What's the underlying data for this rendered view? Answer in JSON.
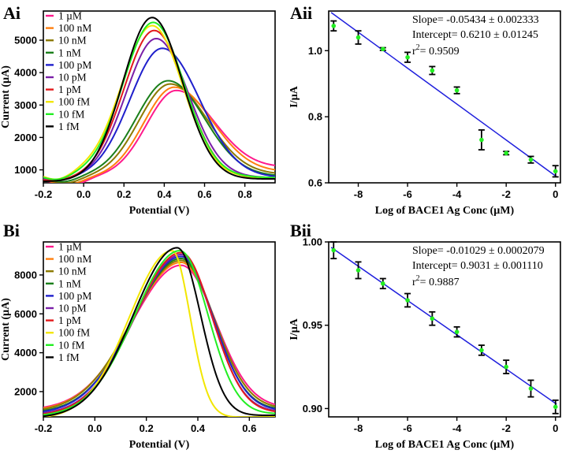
{
  "figure": {
    "panels": [
      {
        "label_main": "A",
        "label_sub": "i"
      },
      {
        "label_main": "A",
        "label_sub": "ii"
      },
      {
        "label_main": "B",
        "label_sub": "i"
      },
      {
        "label_main": "B",
        "label_sub": "ii"
      }
    ]
  },
  "chart_data": [
    {
      "id": "Ai",
      "type": "line",
      "xlabel": "Potential (V)",
      "ylabel": "Current (µA)",
      "xlim": [
        -0.2,
        0.95
      ],
      "ylim": [
        600,
        5900
      ],
      "xticks": [
        -0.2,
        0,
        0.2,
        0.4,
        0.6,
        0.8
      ],
      "yticks": [
        1000,
        2000,
        3000,
        4000,
        5000
      ],
      "series": [
        {
          "name": "1 µM",
          "color": "#ff1a8c",
          "peak_x": 0.46,
          "peak_y": 3450,
          "base_left": 700,
          "base_right": 1050,
          "min_x": -0.07,
          "min_y": 480,
          "sigma_left": 0.145,
          "sigma_right": 0.19
        },
        {
          "name": "100 nM",
          "color": "#ff7f0e",
          "peak_x": 0.45,
          "peak_y": 3550,
          "base_left": 720,
          "base_right": 920,
          "min_x": -0.08,
          "min_y": 520,
          "sigma_left": 0.15,
          "sigma_right": 0.19
        },
        {
          "name": "10 nM",
          "color": "#8c7a00",
          "peak_x": 0.43,
          "peak_y": 3650,
          "base_left": 760,
          "base_right": 850,
          "min_x": -0.09,
          "min_y": 560,
          "sigma_left": 0.155,
          "sigma_right": 0.185
        },
        {
          "name": "1 nM",
          "color": "#1a7f1a",
          "peak_x": 0.42,
          "peak_y": 3750,
          "base_left": 800,
          "base_right": 800,
          "min_x": -0.1,
          "min_y": 600,
          "sigma_left": 0.16,
          "sigma_right": 0.18
        },
        {
          "name": "100 pM",
          "color": "#1f1fcc",
          "peak_x": 0.39,
          "peak_y": 4750,
          "base_left": 760,
          "base_right": 760,
          "min_x": -0.12,
          "min_y": 650,
          "sigma_left": 0.16,
          "sigma_right": 0.185
        },
        {
          "name": "10 pM",
          "color": "#7a1fa8",
          "peak_x": 0.36,
          "peak_y": 5050,
          "base_left": 740,
          "base_right": 760,
          "min_x": -0.13,
          "min_y": 660,
          "sigma_left": 0.15,
          "sigma_right": 0.16
        },
        {
          "name": "1 pM",
          "color": "#e31a1c",
          "peak_x": 0.35,
          "peak_y": 5300,
          "base_left": 720,
          "base_right": 740,
          "min_x": -0.13,
          "min_y": 650,
          "sigma_left": 0.15,
          "sigma_right": 0.155
        },
        {
          "name": "100 fM",
          "color": "#f2e600",
          "peak_x": 0.34,
          "peak_y": 5450,
          "base_left": 950,
          "base_right": 740,
          "min_x": -0.13,
          "min_y": 650,
          "sigma_left": 0.15,
          "sigma_right": 0.15
        },
        {
          "name": "10 fM",
          "color": "#22ee22",
          "peak_x": 0.345,
          "peak_y": 5550,
          "base_left": 880,
          "base_right": 760,
          "min_x": -0.13,
          "min_y": 660,
          "sigma_left": 0.148,
          "sigma_right": 0.152
        },
        {
          "name": "1 fM",
          "color": "#000000",
          "peak_x": 0.34,
          "peak_y": 5700,
          "base_left": 650,
          "base_right": 720,
          "min_x": -0.14,
          "min_y": 640,
          "sigma_left": 0.145,
          "sigma_right": 0.15
        }
      ]
    },
    {
      "id": "Aii",
      "type": "scatter",
      "xlabel": "Log of BACE1 Ag Conc (µM)",
      "ylabel": "I/µA",
      "xlim": [
        -9.2,
        0.2
      ],
      "ylim": [
        0.6,
        1.12
      ],
      "xticks": [
        -8,
        -6,
        -4,
        -2,
        0
      ],
      "yticks": [
        0.6,
        0.8,
        1.0
      ],
      "ytick_labels": [
        "0.6",
        "0.8",
        "1.0"
      ],
      "x": [
        -9,
        -8,
        -7,
        -6,
        -5,
        -4,
        -3,
        -2,
        -1,
        0
      ],
      "y": [
        1.075,
        1.04,
        1.005,
        0.98,
        0.94,
        0.88,
        0.73,
        0.69,
        0.67,
        0.635
      ],
      "err": [
        0.015,
        0.02,
        0.004,
        0.015,
        0.012,
        0.01,
        0.03,
        0.005,
        0.01,
        0.017
      ],
      "fit": {
        "slope": -0.05434,
        "intercept": 0.621,
        "color": "#1f1fdd"
      },
      "point_color": "#22ee22",
      "annotations": {
        "slope": "Slope= -0.05434 ± 0.002333",
        "intercept": "Intercept= 0.6210 ± 0.01245",
        "r2_prefix": "r",
        "r2_sup": "2",
        "r2_value": "= 0.9509"
      }
    },
    {
      "id": "Bi",
      "type": "line",
      "xlabel": "Potential (V)",
      "ylabel": "Current (µA)",
      "xlim": [
        -0.2,
        0.7
      ],
      "ylim": [
        700,
        9700
      ],
      "xticks": [
        -0.2,
        0,
        0.2,
        0.4,
        0.6
      ],
      "yticks": [
        2000,
        4000,
        6000,
        8000
      ],
      "series": [
        {
          "name": "1 µM",
          "color": "#ff1a8c",
          "peak_x": 0.335,
          "peak_y": 8500,
          "base_left": 1050,
          "base_right": 1150,
          "sigma_left": 0.19,
          "sigma_right": 0.135
        },
        {
          "name": "100 nM",
          "color": "#ff7f0e",
          "peak_x": 0.335,
          "peak_y": 8650,
          "base_left": 1000,
          "base_right": 1100,
          "sigma_left": 0.19,
          "sigma_right": 0.13
        },
        {
          "name": "10 nM",
          "color": "#8c7a00",
          "peak_x": 0.335,
          "peak_y": 8750,
          "base_left": 950,
          "base_right": 1100,
          "sigma_left": 0.19,
          "sigma_right": 0.13
        },
        {
          "name": "1 nM",
          "color": "#1a7f1a",
          "peak_x": 0.335,
          "peak_y": 8850,
          "base_left": 900,
          "base_right": 1050,
          "sigma_left": 0.185,
          "sigma_right": 0.125
        },
        {
          "name": "100 pM",
          "color": "#1f1fcc",
          "peak_x": 0.335,
          "peak_y": 8950,
          "base_left": 850,
          "base_right": 1000,
          "sigma_left": 0.185,
          "sigma_right": 0.125
        },
        {
          "name": "10 pM",
          "color": "#7a1fa8",
          "peak_x": 0.335,
          "peak_y": 9050,
          "base_left": 800,
          "base_right": 950,
          "sigma_left": 0.18,
          "sigma_right": 0.12
        },
        {
          "name": "1 pM",
          "color": "#e31a1c",
          "peak_x": 0.335,
          "peak_y": 9150,
          "base_left": 750,
          "base_right": 900,
          "sigma_left": 0.18,
          "sigma_right": 0.12
        },
        {
          "name": "100 fM",
          "color": "#f2e600",
          "peak_x": 0.3,
          "peak_y": 9250,
          "base_left": 600,
          "base_right": 700,
          "sigma_left": 0.165,
          "sigma_right": 0.07
        },
        {
          "name": "10 fM",
          "color": "#22ee22",
          "peak_x": 0.33,
          "peak_y": 9250,
          "base_left": 720,
          "base_right": 850,
          "sigma_left": 0.175,
          "sigma_right": 0.11
        },
        {
          "name": "1 fM",
          "color": "#000000",
          "peak_x": 0.32,
          "peak_y": 9400,
          "base_left": 650,
          "base_right": 780,
          "sigma_left": 0.17,
          "sigma_right": 0.09
        }
      ]
    },
    {
      "id": "Bii",
      "type": "scatter",
      "xlabel": "Log of BACE1 Ag Conc (µM)",
      "ylabel": "I/µA",
      "xlim": [
        -9.2,
        0.2
      ],
      "ylim": [
        0.895,
        1.0
      ],
      "xticks": [
        -8,
        -6,
        -4,
        -2,
        0
      ],
      "yticks": [
        0.9,
        0.95,
        1.0
      ],
      "ytick_labels": [
        "0.90",
        "0.95",
        "1.00"
      ],
      "x": [
        -9,
        -8,
        -7,
        -6,
        -5,
        -4,
        -3,
        -2,
        -1,
        0
      ],
      "y": [
        0.995,
        0.983,
        0.975,
        0.965,
        0.954,
        0.946,
        0.935,
        0.925,
        0.912,
        0.901
      ],
      "err": [
        0.005,
        0.005,
        0.003,
        0.004,
        0.004,
        0.003,
        0.003,
        0.004,
        0.005,
        0.004
      ],
      "fit": {
        "slope": -0.01029,
        "intercept": 0.9031,
        "color": "#1f1fdd"
      },
      "point_color": "#22ee22",
      "annotations": {
        "slope": "Slope= -0.01029 ± 0.0002079",
        "intercept": "Intercept= 0.9031 ± 0.001110",
        "r2_prefix": "r",
        "r2_sup": "2",
        "r2_value": "= 0.9887"
      }
    }
  ]
}
